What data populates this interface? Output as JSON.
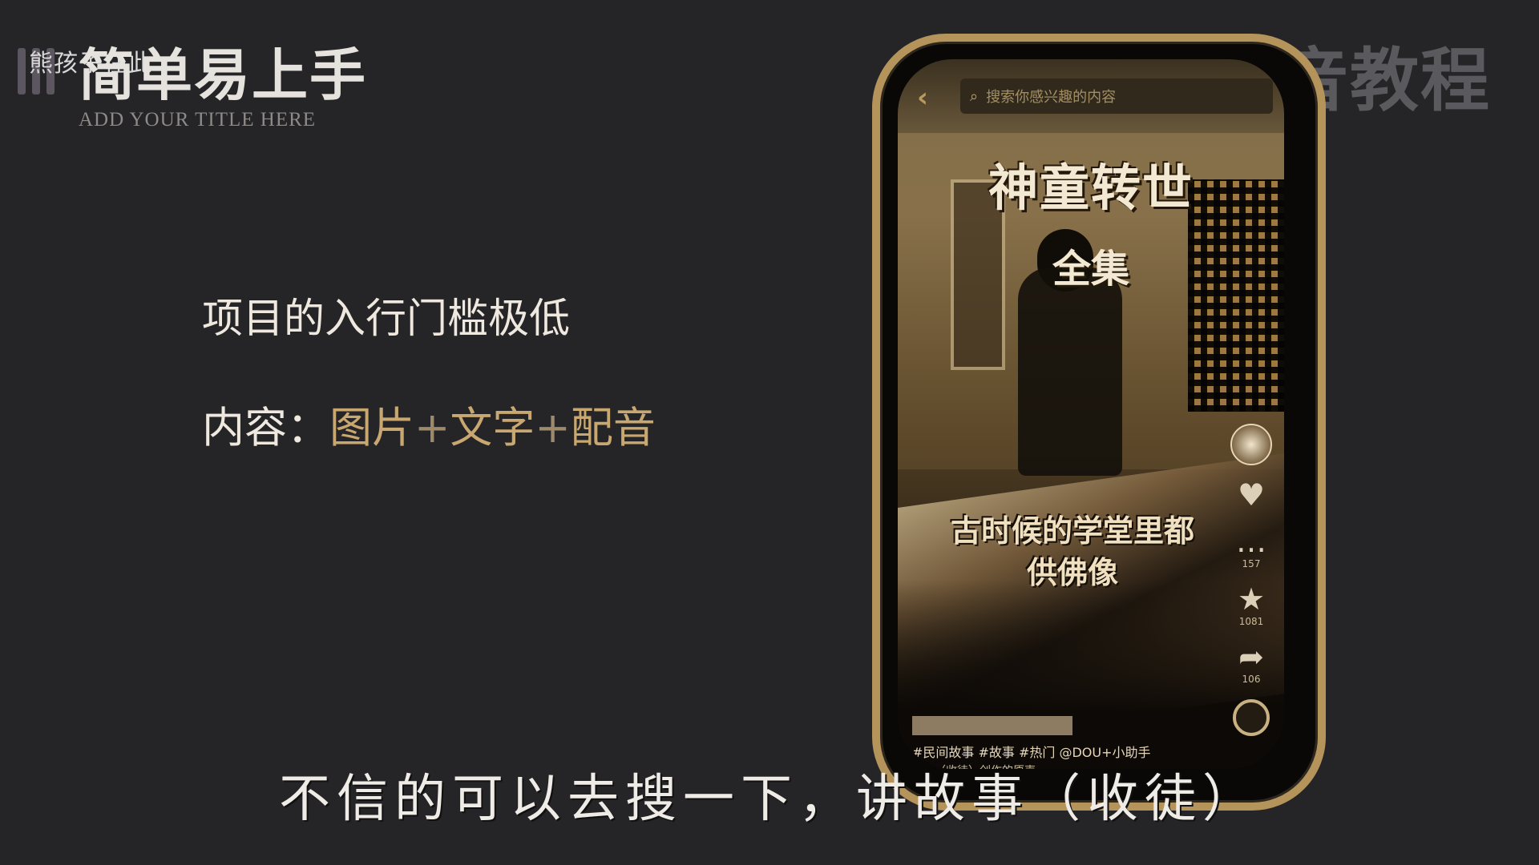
{
  "brand": {
    "title": "简单易上手",
    "subtitle": "ADD YOUR TITLE HERE",
    "watermark": "熊孩子在此"
  },
  "corner_brand": "抖音教程",
  "points": {
    "line1": "项目的入行门槛极低",
    "content_label": "内容：",
    "content_items": [
      "图片",
      "文字",
      "配音"
    ],
    "separator": "+"
  },
  "phone": {
    "search_placeholder": "搜索你感兴趣的内容",
    "video": {
      "title": "神童转世",
      "subtitle": "全集",
      "overlay_caption_line1": "古时候的学堂里都",
      "overlay_caption_line2": "供佛像",
      "hashtags": "#民间故事 #故事 #热门 @DOU+小助手",
      "music": "故事（收徒）创作的原声"
    },
    "actions": [
      {
        "icon": "heart-icon",
        "glyph": "♥",
        "count": ""
      },
      {
        "icon": "comment-icon",
        "glyph": "…",
        "count": "157"
      },
      {
        "icon": "star-icon",
        "glyph": "★",
        "count": "1081"
      },
      {
        "icon": "share-icon",
        "glyph": "➦",
        "count": "106"
      }
    ]
  },
  "caption": "不信的可以去搜一下，讲故事（收徒）"
}
